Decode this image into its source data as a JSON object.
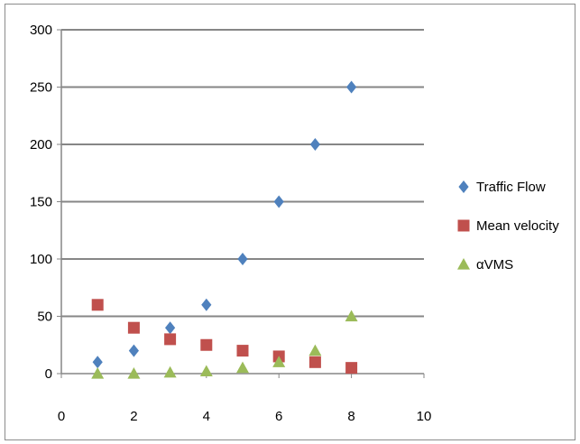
{
  "chart_data": {
    "type": "scatter",
    "xlim": [
      0,
      10
    ],
    "ylim": [
      0,
      300
    ],
    "x_ticks": [
      "0",
      "2",
      "4",
      "6",
      "8",
      "10"
    ],
    "y_ticks": [
      "0",
      "50",
      "100",
      "150",
      "200",
      "250",
      "300"
    ],
    "grid": "horizontal",
    "legend_position": "right",
    "series": [
      {
        "name": "Traffic Flow",
        "marker": "diamond",
        "color": "#4f81bd",
        "x": [
          1,
          2,
          3,
          4,
          5,
          6,
          7,
          8
        ],
        "y": [
          10,
          20,
          40,
          60,
          100,
          150,
          200,
          250
        ]
      },
      {
        "name": "Mean velocity",
        "marker": "square",
        "color": "#c0504d",
        "x": [
          1,
          2,
          3,
          4,
          5,
          6,
          7,
          8
        ],
        "y": [
          60,
          40,
          30,
          25,
          20,
          15,
          10,
          5
        ]
      },
      {
        "name": "αVMS",
        "marker": "triangle",
        "color": "#9bbb59",
        "x": [
          1,
          2,
          3,
          4,
          5,
          6,
          7,
          8
        ],
        "y": [
          0,
          0,
          1,
          2,
          5,
          10,
          20,
          50
        ]
      }
    ]
  }
}
